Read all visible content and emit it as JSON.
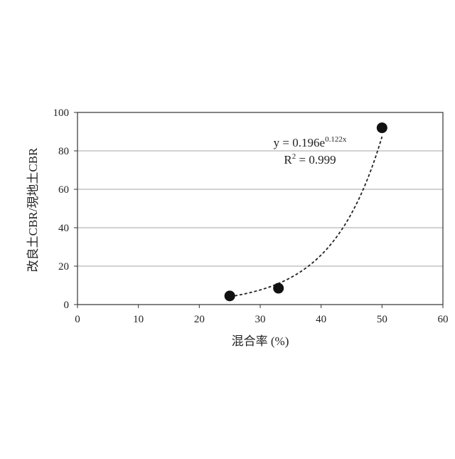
{
  "chart_data": {
    "type": "scatter",
    "xlabel": "混合率 (%)",
    "ylabel": "改良土CBR/現地土CBR",
    "xlim": [
      0,
      60
    ],
    "ylim": [
      0,
      100
    ],
    "x_ticks": [
      "0",
      "10",
      "20",
      "30",
      "40",
      "50",
      "60"
    ],
    "y_ticks": [
      "0",
      "20",
      "40",
      "60",
      "80",
      "100"
    ],
    "grid": "horizontal",
    "points": [
      {
        "x": 25,
        "y": 4.5
      },
      {
        "x": 33,
        "y": 8.5
      },
      {
        "x": 50,
        "y": 92
      }
    ],
    "trendline": {
      "type": "exponential",
      "a": 0.196,
      "b": 0.122,
      "x_from": 25,
      "x_to": 50,
      "equation_base": "y = 0.196e",
      "equation_exponent": "0.122x",
      "r2_label": "R",
      "r2_sup": "2",
      "r2_value": " = 0.999"
    },
    "colors": {
      "points": "#111111",
      "trendline": "#222222",
      "grid": "#a6a6a6",
      "frame": "#333333"
    }
  }
}
